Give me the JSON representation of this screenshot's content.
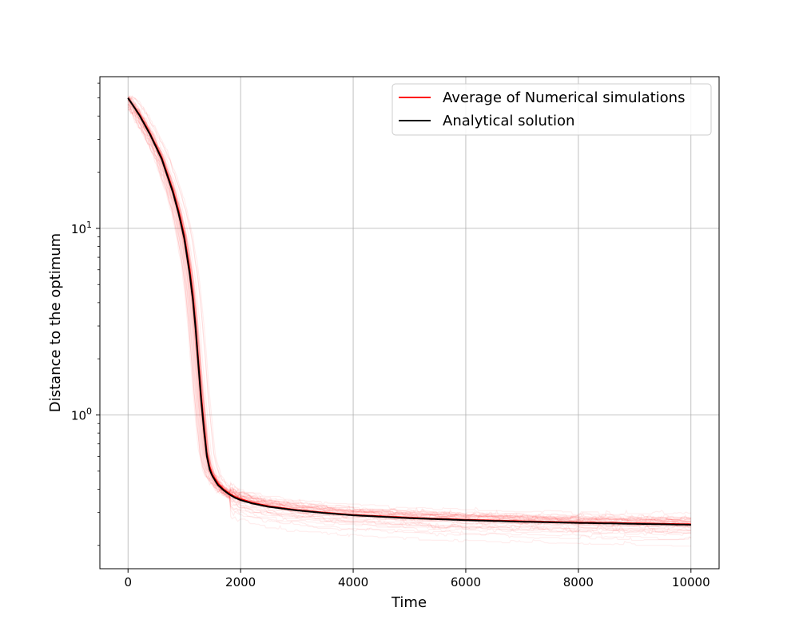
{
  "chart_data": {
    "type": "line",
    "xlabel": "Time",
    "ylabel": "Distance to the optimum",
    "xlim": [
      -500,
      10500
    ],
    "ylim": [
      0.15,
      65
    ],
    "yscale": "log",
    "grid": true,
    "legend_position": "top-right",
    "x_ticks": [
      {
        "value": 0,
        "label": "0"
      },
      {
        "value": 2000,
        "label": "2000"
      },
      {
        "value": 4000,
        "label": "4000"
      },
      {
        "value": 6000,
        "label": "6000"
      },
      {
        "value": 8000,
        "label": "8000"
      },
      {
        "value": 10000,
        "label": "10000"
      }
    ],
    "y_ticks": [
      {
        "value": 1,
        "base": "10",
        "exp": "0"
      },
      {
        "value": 10,
        "base": "10",
        "exp": "1"
      }
    ],
    "series": [
      {
        "name": "Average of Numerical simulations",
        "color": "#ff0000",
        "x": [
          0,
          200,
          400,
          600,
          800,
          900,
          1000,
          1100,
          1150,
          1200,
          1250,
          1300,
          1350,
          1400,
          1450,
          1500,
          1600,
          1700,
          1800,
          1900,
          2000,
          2200,
          2500,
          3000,
          3500,
          4000,
          5000,
          6000,
          7000,
          8000,
          9000,
          10000
        ],
        "y": [
          50,
          41,
          32,
          24,
          16,
          12.5,
          9.2,
          6,
          4.5,
          3.1,
          2,
          1.3,
          0.9,
          0.63,
          0.53,
          0.48,
          0.43,
          0.4,
          0.38,
          0.365,
          0.355,
          0.34,
          0.325,
          0.31,
          0.3,
          0.292,
          0.282,
          0.275,
          0.27,
          0.266,
          0.263,
          0.26
        ]
      },
      {
        "name": "Analytical solution",
        "color": "#000000",
        "x": [
          0,
          200,
          400,
          600,
          800,
          900,
          1000,
          1100,
          1150,
          1200,
          1250,
          1300,
          1350,
          1400,
          1450,
          1500,
          1600,
          1700,
          1800,
          1900,
          2000,
          2200,
          2500,
          3000,
          3500,
          4000,
          5000,
          6000,
          7000,
          8000,
          9000,
          10000
        ],
        "y": [
          50,
          40.5,
          31.5,
          23.5,
          15.5,
          12,
          8.8,
          5.6,
          4.2,
          2.9,
          1.85,
          1.2,
          0.83,
          0.6,
          0.51,
          0.47,
          0.42,
          0.395,
          0.375,
          0.36,
          0.35,
          0.336,
          0.322,
          0.308,
          0.298,
          0.29,
          0.28,
          0.273,
          0.268,
          0.264,
          0.261,
          0.258
        ]
      }
    ],
    "simulation_runs": {
      "count": 40,
      "color": "#ff0000",
      "opacity": 0.07
    }
  }
}
